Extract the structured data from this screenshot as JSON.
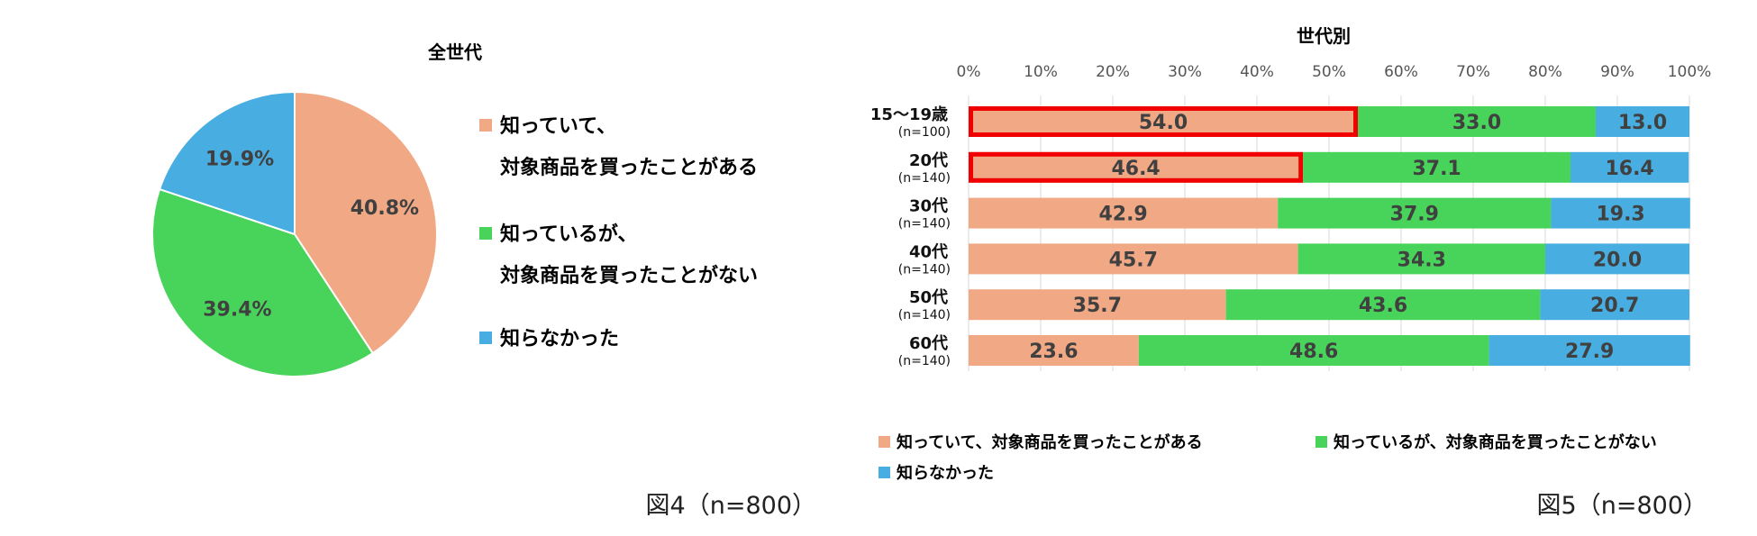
{
  "colors": {
    "bought": "#F1A985",
    "not_bought": "#48D45A",
    "unknown": "#48ADE0",
    "highlight": "#F00000"
  },
  "chart_data": [
    {
      "type": "pie",
      "title": "全世代",
      "caption": "図4（n=800）",
      "slices": [
        {
          "key": "bought",
          "label_lines": [
            "知っていて、",
            "対象商品を買ったことがある"
          ],
          "value": 40.8,
          "value_label": "40.8%"
        },
        {
          "key": "not_bought",
          "label_lines": [
            "知っているが、",
            "対象商品を買ったことがない"
          ],
          "value": 39.4,
          "value_label": "39.4%"
        },
        {
          "key": "unknown",
          "label_lines": [
            "知らなかった"
          ],
          "value": 19.9,
          "value_label": "19.9%"
        }
      ]
    },
    {
      "type": "bar",
      "orientation": "horizontal-stacked-100",
      "title": "世代別",
      "caption": "図5（n=800）",
      "xlim": [
        0,
        100
      ],
      "xticks": [
        "0%",
        "10%",
        "20%",
        "30%",
        "40%",
        "50%",
        "60%",
        "70%",
        "80%",
        "90%",
        "100%"
      ],
      "categories": [
        {
          "name": "15～19歳",
          "n": "(n=100)"
        },
        {
          "name": "20代",
          "n": "(n=140)"
        },
        {
          "name": "30代",
          "n": "(n=140)"
        },
        {
          "name": "40代",
          "n": "(n=140)"
        },
        {
          "name": "50代",
          "n": "(n=140)"
        },
        {
          "name": "60代",
          "n": "(n=140)"
        }
      ],
      "series": [
        {
          "key": "bought",
          "name": "知っていて、対象商品を買ったことがある",
          "values": [
            54.0,
            46.4,
            42.9,
            45.7,
            35.7,
            23.6
          ],
          "labels": [
            "54.0",
            "46.4",
            "42.9",
            "45.7",
            "35.7",
            "23.6"
          ]
        },
        {
          "key": "not_bought",
          "name": "知っているが、対象商品を買ったことがない",
          "values": [
            33.0,
            37.1,
            37.9,
            34.3,
            43.6,
            48.6
          ],
          "labels": [
            "33.0",
            "37.1",
            "37.9",
            "34.3",
            "43.6",
            "48.6"
          ]
        },
        {
          "key": "unknown",
          "name": "知らなかった",
          "values": [
            13.0,
            16.4,
            19.3,
            20.0,
            20.7,
            27.9
          ],
          "labels": [
            "13.0",
            "16.4",
            "19.3",
            "20.0",
            "20.7",
            "27.9"
          ]
        }
      ],
      "highlighted_rows": [
        0,
        1
      ],
      "highlighted_series": "bought"
    }
  ]
}
